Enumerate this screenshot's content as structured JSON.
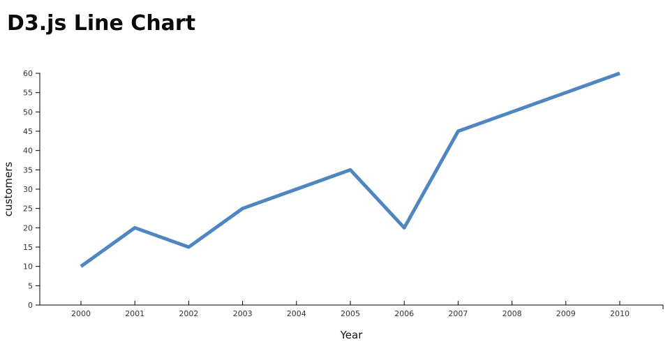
{
  "page": {
    "title": "D3.js Line Chart"
  },
  "chart_data": {
    "type": "line",
    "title": "D3.js Line Chart",
    "x": [
      2000,
      2001,
      2002,
      2003,
      2004,
      2005,
      2006,
      2007,
      2008,
      2009,
      2010
    ],
    "series": [
      {
        "name": "customers",
        "values": [
          10,
          20,
          15,
          25,
          30,
          35,
          20,
          45,
          50,
          55,
          60
        ]
      }
    ],
    "xlabel": "Year",
    "ylabel": "customers",
    "ylim": [
      0,
      60
    ],
    "yticks": [
      0,
      5,
      10,
      15,
      20,
      25,
      30,
      35,
      40,
      45,
      50,
      55,
      60
    ],
    "grid": false,
    "legend": "none",
    "line_color": "#4f86c0",
    "line_width": 5,
    "axis_color": "#000000",
    "tick_label_color": "#333333"
  }
}
